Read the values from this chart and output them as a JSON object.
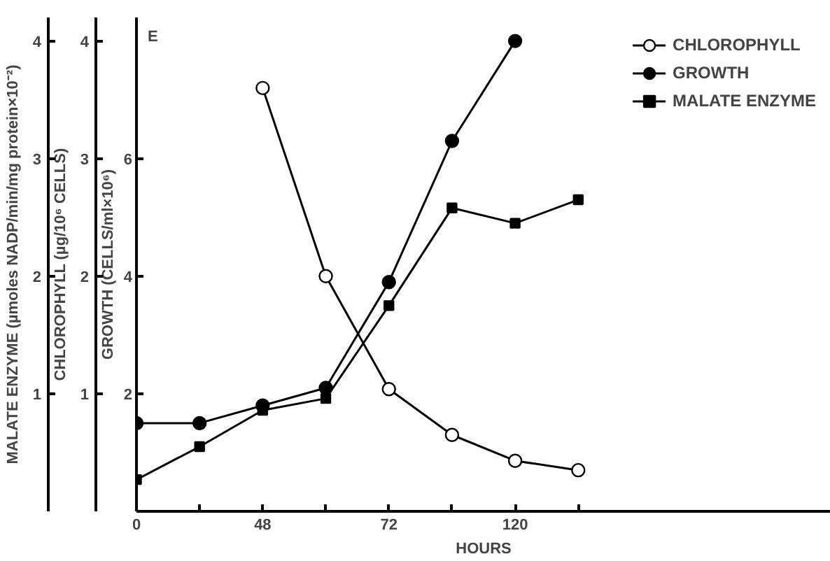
{
  "chart_data": {
    "type": "line",
    "annotations": [
      "E"
    ],
    "xlabel": "HOURS",
    "ylabel": "GROWTH (CELLS/ml×10⁶)",
    "y2label": "CHLOROPHYLL (µg/10⁶ CELLS)",
    "y3label": "MALATE ENZYME (µmoles NADP/min/mg protein×10⁻²)",
    "categories": [
      "0",
      null,
      "48",
      null,
      "72",
      null,
      "120",
      null
    ],
    "ylim": [
      0,
      8.4
    ],
    "yticks": [
      2,
      4,
      6
    ],
    "y2lim": [
      0,
      4.2
    ],
    "y2ticks": [
      1,
      2,
      3,
      4
    ],
    "y3lim": [
      0,
      4.2
    ],
    "y3ticks": [
      1,
      2,
      3,
      4
    ],
    "legend": "top right",
    "line_style": "solid",
    "series": [
      {
        "name": "CHLOROPHYLL",
        "color": "#000000",
        "marker": "circle_open",
        "axis": "y2",
        "values": [
          null,
          null,
          3.6,
          2.0,
          1.04,
          0.65,
          0.43,
          0.35
        ]
      },
      {
        "name": "GROWTH",
        "color": "#000000",
        "marker": "circle",
        "axis": "y",
        "values": [
          1.5,
          1.5,
          1.8,
          2.1,
          3.9,
          6.3,
          8.0,
          null
        ]
      },
      {
        "name": "MALATE ENZYME",
        "color": "#000000",
        "marker": "square",
        "axis": "y3",
        "values": [
          0.27,
          0.55,
          0.86,
          0.96,
          1.75,
          2.58,
          2.45,
          2.65
        ]
      }
    ]
  }
}
